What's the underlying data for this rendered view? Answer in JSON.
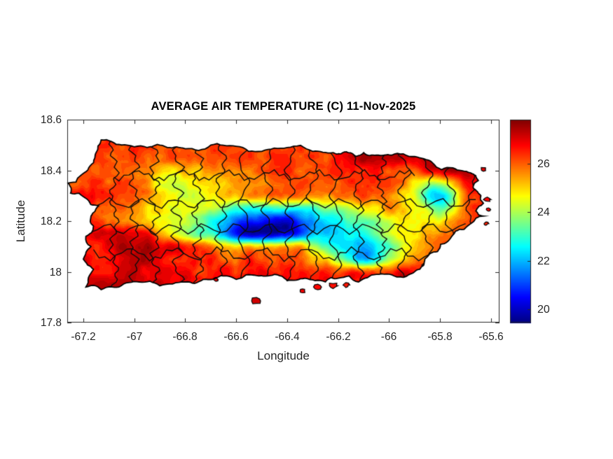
{
  "chart_data": {
    "type": "heatmap",
    "title": "AVERAGE AIR TEMPERATURE (C) 11-Nov-2025",
    "xlabel": "Longitude",
    "ylabel": "Latitude",
    "region": "Puerto Rico with municipality boundaries",
    "xlim": [
      -67.263,
      -65.567
    ],
    "ylim": [
      17.8,
      18.6
    ],
    "xticks": [
      -67.2,
      -67.0,
      -66.8,
      -66.6,
      -66.4,
      -66.2,
      -66.0,
      -65.8,
      -65.6
    ],
    "xtick_labels": [
      "-67.2",
      "-67",
      "-66.8",
      "-66.6",
      "-66.4",
      "-66.2",
      "-66",
      "-65.8",
      "-65.6"
    ],
    "yticks": [
      17.8,
      18.0,
      18.2,
      18.4,
      18.6
    ],
    "ytick_labels": [
      "17.8",
      "18",
      "18.2",
      "18.4",
      "18.6"
    ],
    "colormap": "jet",
    "colorbar": {
      "min": 19.45,
      "max": 27.81,
      "ticks": [
        20,
        22,
        24,
        26
      ],
      "tick_labels": [
        "20",
        "22",
        "24",
        "26"
      ],
      "position": "right"
    },
    "grid": {
      "lon": [
        -67.3,
        -67.2,
        -67.1,
        -67.0,
        -66.9,
        -66.8,
        -66.7,
        -66.6,
        -66.5,
        -66.4,
        -66.3,
        -66.2,
        -66.1,
        -66.0,
        -65.9,
        -65.8,
        -65.7,
        -65.6
      ],
      "lat": [
        17.9,
        17.95,
        18.0,
        18.05,
        18.1,
        18.15,
        18.2,
        18.25,
        18.3,
        18.35,
        18.4,
        18.45,
        18.5,
        18.55
      ],
      "temperature": [
        [
          27.0,
          27.0,
          27.0,
          27.1,
          27.0,
          26.9,
          26.9,
          26.8,
          26.9,
          26.8,
          26.8,
          26.9,
          26.8,
          26.9,
          27.0,
          27.0,
          27.0,
          27.0
        ],
        [
          27.0,
          27.1,
          27.0,
          27.2,
          27.1,
          26.9,
          26.8,
          26.7,
          26.8,
          26.7,
          26.6,
          26.7,
          26.6,
          26.8,
          27.0,
          26.9,
          26.9,
          26.9
        ],
        [
          26.8,
          26.9,
          26.8,
          27.0,
          27.0,
          26.8,
          26.6,
          26.5,
          26.6,
          26.4,
          26.3,
          26.2,
          26.4,
          26.6,
          26.9,
          26.8,
          26.8,
          26.8
        ],
        [
          26.6,
          26.8,
          26.9,
          27.0,
          26.9,
          26.5,
          26.3,
          26.1,
          26.3,
          26.1,
          25.6,
          23.8,
          22.2,
          24.2,
          25.8,
          26.4,
          26.7,
          26.8
        ],
        [
          26.5,
          26.7,
          26.9,
          27.3,
          27.2,
          26.3,
          25.8,
          25.2,
          25.0,
          25.6,
          24.5,
          22.8,
          22.0,
          23.5,
          25.2,
          26.2,
          26.6,
          26.9
        ],
        [
          26.3,
          26.6,
          27.2,
          27.0,
          25.8,
          24.2,
          23.0,
          21.0,
          19.8,
          20.2,
          22.0,
          22.3,
          22.8,
          24.0,
          25.0,
          25.8,
          26.4,
          26.8
        ],
        [
          26.4,
          26.8,
          26.2,
          25.6,
          24.5,
          24.0,
          23.0,
          21.5,
          20.5,
          20.0,
          21.8,
          22.5,
          23.5,
          24.3,
          24.8,
          25.0,
          26.2,
          26.8
        ],
        [
          26.2,
          26.6,
          26.0,
          25.5,
          24.8,
          24.3,
          23.8,
          23.2,
          23.0,
          22.8,
          23.2,
          23.8,
          24.8,
          25.4,
          25.0,
          23.2,
          26.0,
          27.0
        ],
        [
          26.5,
          26.8,
          26.3,
          26.0,
          24.8,
          24.5,
          24.8,
          25.2,
          25.6,
          25.8,
          25.6,
          25.8,
          26.0,
          25.8,
          24.3,
          21.8,
          25.8,
          27.2
        ],
        [
          26.3,
          26.5,
          26.2,
          26.0,
          24.8,
          24.5,
          25.0,
          25.6,
          25.9,
          26.0,
          25.9,
          26.2,
          26.5,
          26.0,
          25.0,
          23.8,
          26.3,
          27.3
        ],
        [
          26.2,
          26.4,
          26.1,
          25.8,
          25.2,
          25.0,
          25.4,
          25.9,
          26.1,
          26.2,
          26.0,
          26.4,
          26.8,
          26.5,
          26.3,
          26.8,
          27.3,
          27.2
        ],
        [
          26.0,
          26.3,
          26.2,
          26.1,
          26.0,
          25.8,
          26.0,
          26.2,
          26.3,
          26.2,
          26.2,
          26.6,
          27.3,
          27.5,
          27.0,
          27.2,
          27.0,
          26.9
        ],
        [
          26.2,
          26.3,
          26.2,
          26.2,
          26.1,
          26.0,
          26.1,
          26.2,
          26.2,
          26.1,
          26.2,
          26.5,
          27.0,
          27.2,
          26.8,
          26.8,
          26.6,
          26.5
        ],
        [
          26.3,
          26.3,
          26.3,
          26.2,
          26.2,
          26.1,
          26.2,
          26.2,
          26.2,
          26.2,
          26.3,
          26.5,
          26.8,
          27.0,
          26.8,
          26.7,
          26.5,
          26.4
        ]
      ]
    },
    "coastline": [
      [
        -67.13,
        18.52
      ],
      [
        -67.05,
        18.5
      ],
      [
        -66.95,
        18.49
      ],
      [
        -66.87,
        18.49
      ],
      [
        -66.8,
        18.485
      ],
      [
        -66.7,
        18.5
      ],
      [
        -66.6,
        18.495
      ],
      [
        -66.5,
        18.475
      ],
      [
        -66.4,
        18.49
      ],
      [
        -66.3,
        18.475
      ],
      [
        -66.22,
        18.47
      ],
      [
        -66.19,
        18.465
      ],
      [
        -66.16,
        18.47
      ],
      [
        -66.13,
        18.455
      ],
      [
        -66.1,
        18.47
      ],
      [
        -66.05,
        18.46
      ],
      [
        -65.99,
        18.46
      ],
      [
        -65.9,
        18.455
      ],
      [
        -65.83,
        18.43
      ],
      [
        -65.75,
        18.41
      ],
      [
        -65.68,
        18.39
      ],
      [
        -65.65,
        18.36
      ],
      [
        -65.67,
        18.33
      ],
      [
        -65.64,
        18.3
      ],
      [
        -65.63,
        18.27
      ],
      [
        -65.66,
        18.24
      ],
      [
        -65.63,
        18.22
      ],
      [
        -65.68,
        18.19
      ],
      [
        -65.74,
        18.16
      ],
      [
        -65.77,
        18.12
      ],
      [
        -65.81,
        18.08
      ],
      [
        -65.86,
        18.05
      ],
      [
        -65.88,
        18.01
      ],
      [
        -65.92,
        17.99
      ],
      [
        -65.97,
        17.98
      ],
      [
        -66.05,
        17.99
      ],
      [
        -66.12,
        17.96
      ],
      [
        -66.2,
        17.975
      ],
      [
        -66.25,
        17.96
      ],
      [
        -66.33,
        17.975
      ],
      [
        -66.4,
        17.965
      ],
      [
        -66.45,
        17.99
      ],
      [
        -66.52,
        17.985
      ],
      [
        -66.6,
        17.97
      ],
      [
        -66.66,
        17.985
      ],
      [
        -66.73,
        17.97
      ],
      [
        -66.8,
        17.96
      ],
      [
        -66.9,
        17.945
      ],
      [
        -66.98,
        17.96
      ],
      [
        -67.06,
        17.94
      ],
      [
        -67.13,
        17.93
      ],
      [
        -67.19,
        17.94
      ],
      [
        -67.16,
        18.01
      ],
      [
        -67.2,
        18.05
      ],
      [
        -67.17,
        18.1
      ],
      [
        -67.19,
        18.14
      ],
      [
        -67.16,
        18.18
      ],
      [
        -67.17,
        18.22
      ],
      [
        -67.14,
        18.26
      ],
      [
        -67.19,
        18.29
      ],
      [
        -67.25,
        18.31
      ],
      [
        -67.26,
        18.35
      ],
      [
        -67.21,
        18.38
      ],
      [
        -67.16,
        18.43
      ],
      [
        -67.15,
        18.47
      ]
    ],
    "islets": [
      {
        "lon": -66.52,
        "lat": 17.885,
        "r": 0.013
      },
      {
        "lon": -66.34,
        "lat": 17.925,
        "r": 0.007
      },
      {
        "lon": -66.28,
        "lat": 17.94,
        "r": 0.009
      },
      {
        "lon": -66.22,
        "lat": 17.945,
        "r": 0.011
      },
      {
        "lon": -66.17,
        "lat": 17.948,
        "r": 0.008
      },
      {
        "lon": -66.68,
        "lat": 17.97,
        "r": 0.006
      },
      {
        "lon": -65.63,
        "lat": 18.405,
        "r": 0.007
      },
      {
        "lon": -65.615,
        "lat": 18.285,
        "r": 0.008
      },
      {
        "lon": -65.61,
        "lat": 18.245,
        "r": 0.006
      },
      {
        "lon": -65.62,
        "lat": 18.19,
        "r": 0.006
      }
    ],
    "boundary_meridians": [
      -67.08,
      -67.0,
      -66.92,
      -66.83,
      -66.75,
      -66.66,
      -66.57,
      -66.48,
      -66.39,
      -66.3,
      -66.21,
      -66.12,
      -66.03,
      -65.94,
      -65.85,
      -65.76,
      -65.68
    ],
    "boundary_parallels": [
      {
        "lat": 18.07,
        "lon1": -67.16,
        "lon2": -65.84
      },
      {
        "lat": 18.17,
        "lon1": -67.22,
        "lon2": -65.7
      },
      {
        "lat": 18.27,
        "lon1": -67.2,
        "lon2": -65.66
      },
      {
        "lat": 18.38,
        "lon1": -67.08,
        "lon2": -65.9
      }
    ]
  },
  "colors": {
    "background": "#ffffff",
    "axis_frame": "#262626",
    "tick_text": "#262626",
    "title_text": "#000000",
    "coastline": "#000000",
    "municipality_boundary": "#0d0d0d"
  }
}
